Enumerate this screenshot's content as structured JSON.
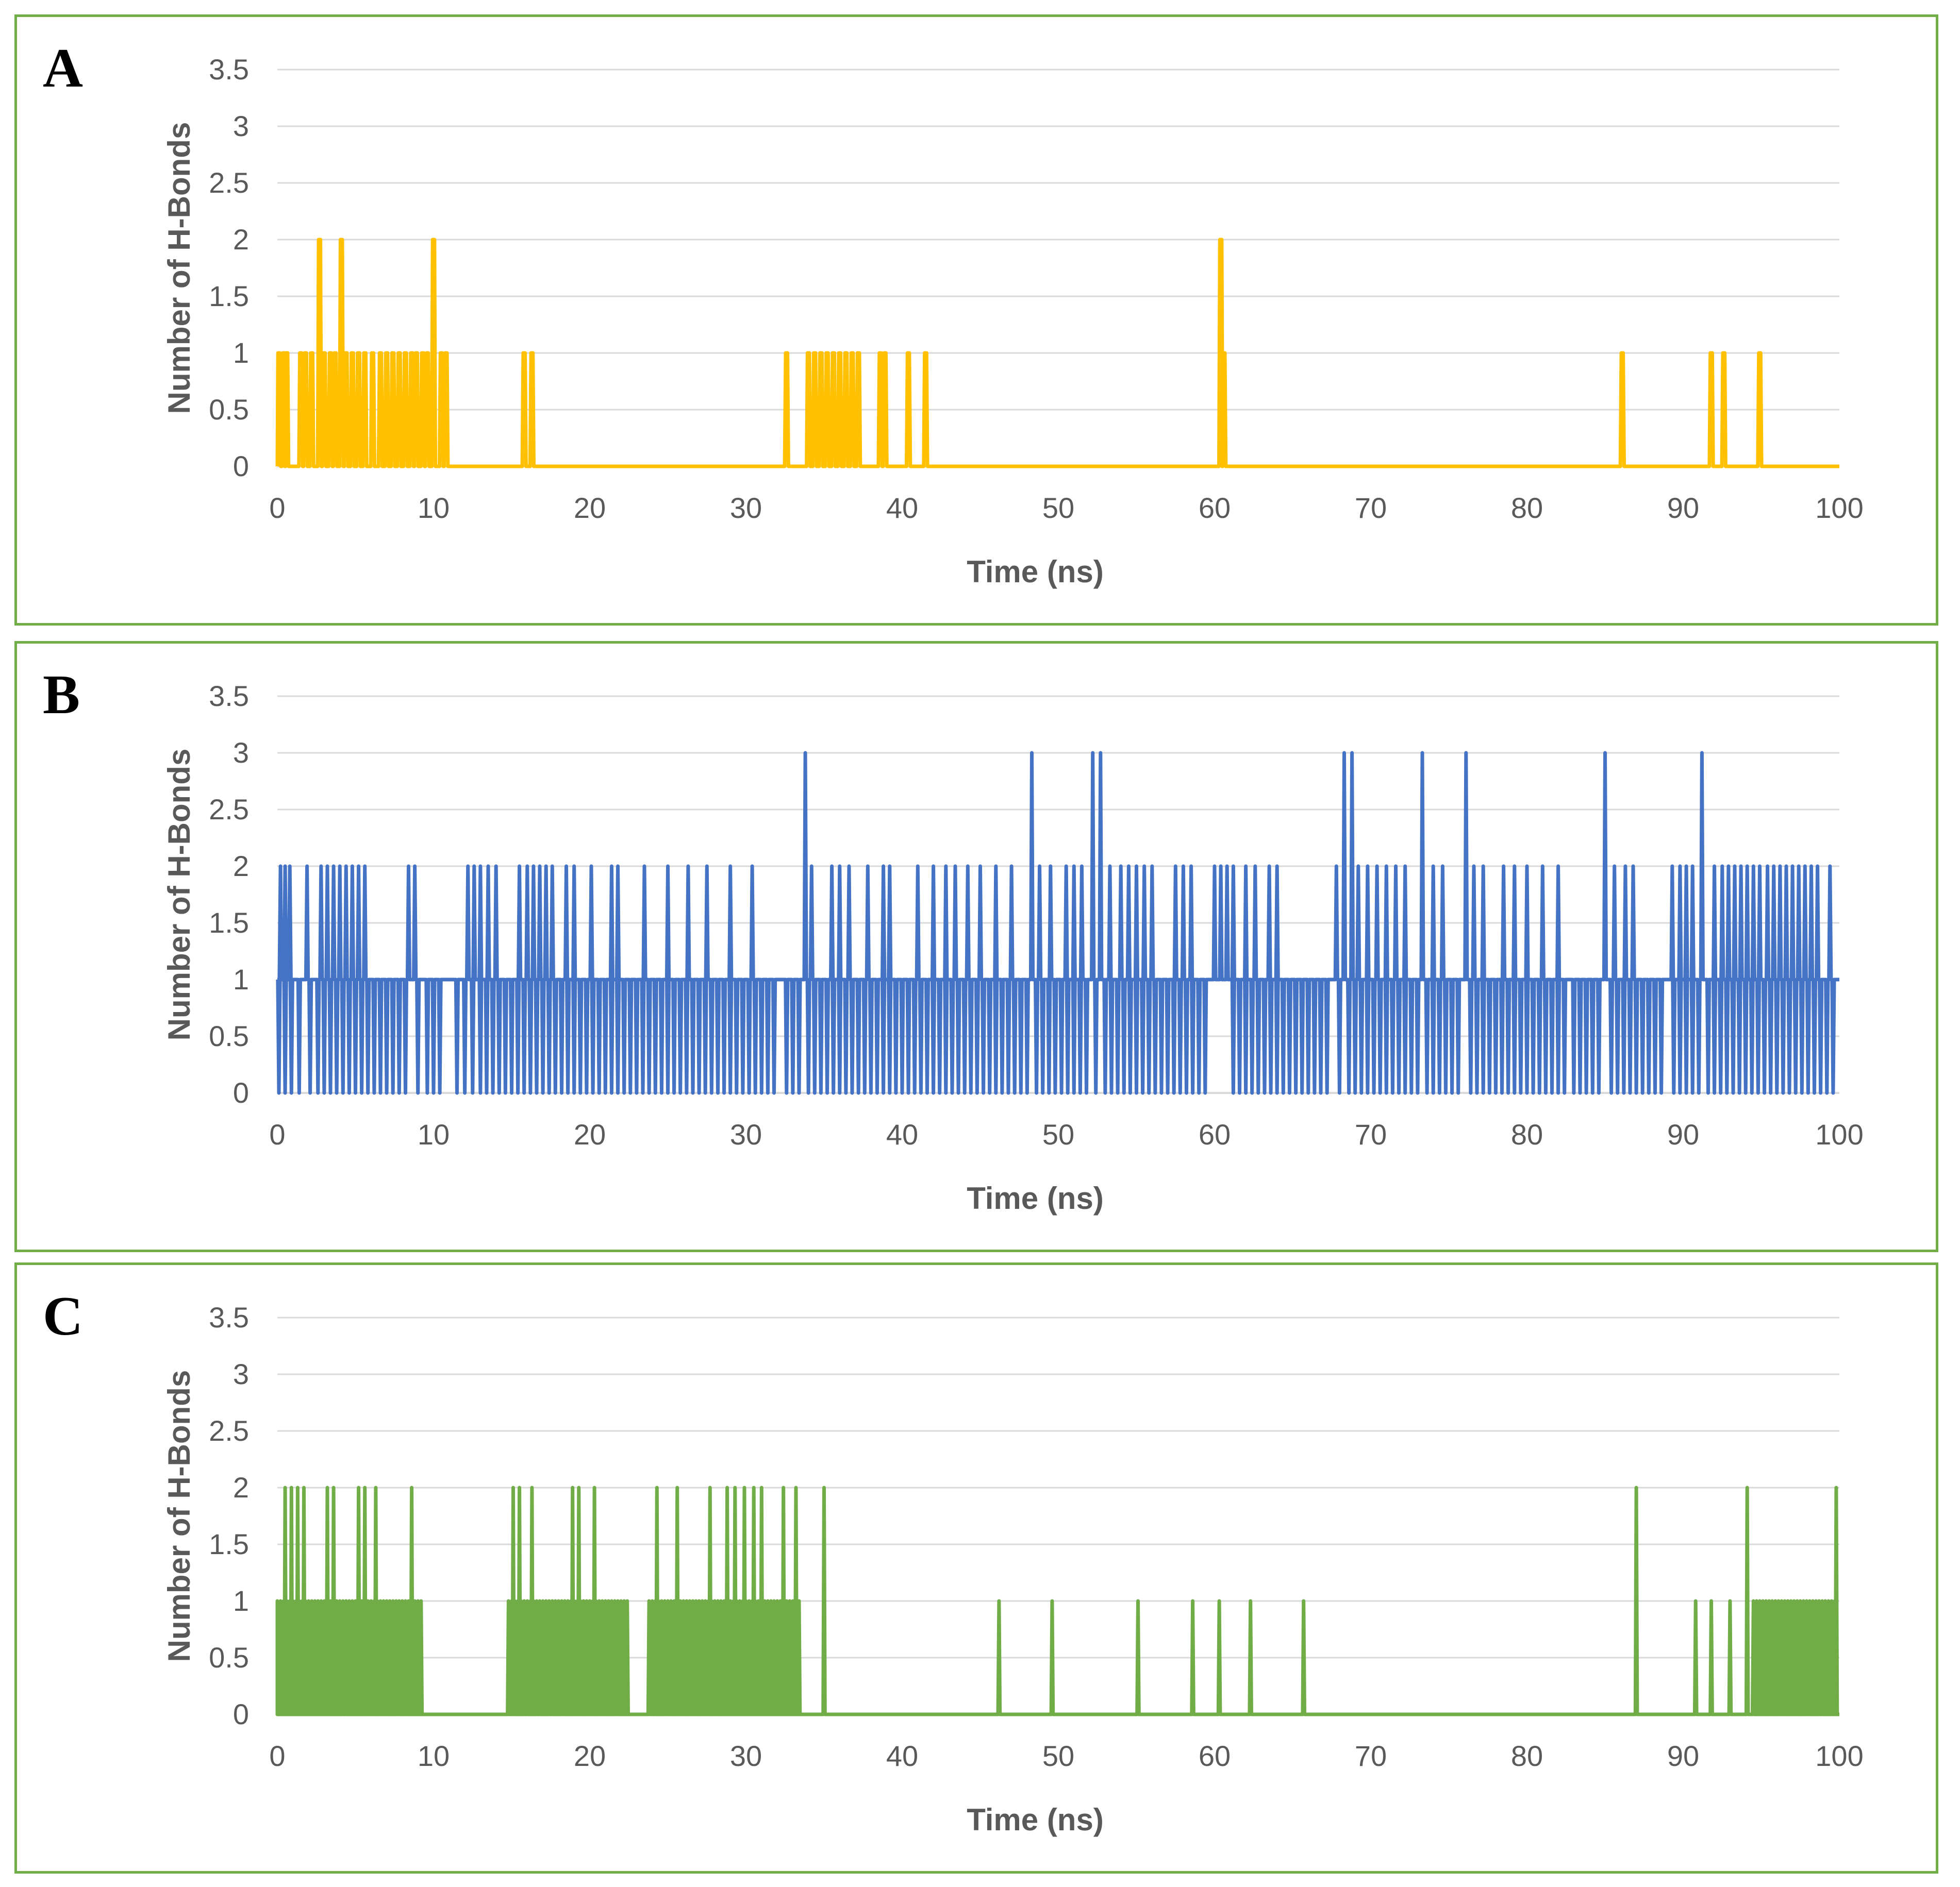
{
  "chart_data": [
    {
      "type": "line",
      "panel_label": "A",
      "series": [
        {
          "name": "H-Bonds",
          "color": "#ffc000",
          "values": "A"
        }
      ],
      "xlabel": "Time (ns)",
      "ylabel": "Number of H-Bonds",
      "xlim": [
        0,
        100
      ],
      "ylim": [
        0,
        3.5
      ],
      "xticks": [
        "0",
        "10",
        "20",
        "30",
        "40",
        "50",
        "60",
        "70",
        "80",
        "90",
        "100"
      ],
      "yticks": [
        "0",
        "0.5",
        "1",
        "1.5",
        "2",
        "2.5",
        "3",
        "3.5"
      ],
      "grid": true,
      "events": [
        [
          0.1,
          1
        ],
        [
          0.4,
          1
        ],
        [
          0.6,
          1
        ],
        [
          1.5,
          1
        ],
        [
          1.8,
          1
        ],
        [
          2.2,
          1
        ],
        [
          2.7,
          2
        ],
        [
          3.0,
          1
        ],
        [
          3.4,
          1
        ],
        [
          3.7,
          1
        ],
        [
          4.1,
          2
        ],
        [
          4.4,
          1
        ],
        [
          4.8,
          1
        ],
        [
          5.2,
          1
        ],
        [
          5.6,
          1
        ],
        [
          6.1,
          1
        ],
        [
          6.6,
          1
        ],
        [
          7.0,
          1
        ],
        [
          7.4,
          1
        ],
        [
          7.8,
          1
        ],
        [
          8.2,
          1
        ],
        [
          8.6,
          1
        ],
        [
          8.9,
          1
        ],
        [
          9.3,
          1
        ],
        [
          9.6,
          1
        ],
        [
          10.0,
          2
        ],
        [
          10.5,
          1
        ],
        [
          10.8,
          1
        ],
        [
          15.8,
          1
        ],
        [
          16.3,
          1
        ],
        [
          32.6,
          1
        ],
        [
          34.0,
          1
        ],
        [
          34.4,
          1
        ],
        [
          34.8,
          1
        ],
        [
          35.2,
          1
        ],
        [
          35.6,
          1
        ],
        [
          36.0,
          1
        ],
        [
          36.4,
          1
        ],
        [
          36.8,
          1
        ],
        [
          37.2,
          1
        ],
        [
          38.6,
          1
        ],
        [
          38.9,
          1
        ],
        [
          40.4,
          1
        ],
        [
          41.5,
          1
        ],
        [
          60.4,
          2
        ],
        [
          60.6,
          1
        ],
        [
          86.1,
          1
        ],
        [
          91.8,
          1
        ],
        [
          92.6,
          1
        ],
        [
          94.9,
          1
        ]
      ]
    },
    {
      "type": "line",
      "panel_label": "B",
      "series": [
        {
          "name": "H-Bonds",
          "color": "#4472c4"
        }
      ],
      "xlabel": "Time (ns)",
      "ylabel": "Number of H-Bonds",
      "xlim": [
        0,
        100
      ],
      "ylim": [
        0,
        3.5
      ],
      "xticks": [
        "0",
        "10",
        "20",
        "30",
        "40",
        "50",
        "60",
        "70",
        "80",
        "90",
        "100"
      ],
      "yticks": [
        "0",
        "0.5",
        "1",
        "1.5",
        "2",
        "2.5",
        "3",
        "3.5"
      ],
      "grid": true,
      "baseline": 1,
      "peaks3": [
        33.8,
        48.3,
        52.2,
        52.7,
        68.3,
        68.8,
        73.3,
        76.1,
        85.0,
        91.2
      ],
      "peaks2": [
        0.2,
        0.5,
        0.8,
        1.9,
        2.8,
        3.2,
        3.6,
        4.0,
        4.4,
        4.8,
        5.2,
        5.6,
        8.4,
        8.8,
        12.2,
        12.6,
        13.0,
        13.5,
        14.0,
        15.5,
        16.0,
        16.4,
        16.8,
        17.2,
        17.6,
        18.5,
        19.0,
        20.1,
        21.4,
        21.8,
        23.5,
        25.0,
        26.3,
        27.5,
        29.0,
        30.4,
        34.2,
        35.5,
        36.0,
        36.6,
        37.8,
        38.8,
        39.2,
        41.0,
        42.0,
        42.8,
        43.4,
        44.2,
        45.0,
        46.0,
        47.0,
        48.8,
        49.5,
        50.5,
        51.0,
        51.5,
        53.3,
        54.0,
        54.5,
        55.0,
        55.5,
        56.0,
        57.5,
        58.0,
        58.5,
        60.0,
        60.4,
        60.8,
        61.2,
        62.0,
        62.6,
        63.5,
        64.0,
        67.8,
        69.2,
        69.8,
        70.4,
        71.0,
        71.6,
        72.2,
        74.0,
        74.6,
        76.6,
        77.2,
        78.5,
        79.2,
        80.0,
        81.0,
        82.0,
        85.6,
        86.3,
        86.8,
        89.3,
        89.8,
        90.2,
        90.6,
        92.0,
        92.5,
        92.9,
        93.3,
        93.7,
        94.1,
        94.5,
        94.9,
        95.4,
        95.8,
        96.2,
        96.6,
        97.0,
        97.4,
        97.8,
        98.2,
        98.6,
        99.4
      ],
      "dips0": [
        0.1,
        0.5,
        0.9,
        1.4,
        2.1,
        2.6,
        3.0,
        3.4,
        3.8,
        4.2,
        4.6,
        5.0,
        5.4,
        5.8,
        6.2,
        6.6,
        7.0,
        7.4,
        7.8,
        8.2,
        9.0,
        9.6,
        10.0,
        10.4,
        11.5,
        12.0,
        12.5,
        13.0,
        13.4,
        13.8,
        14.2,
        14.6,
        15.0,
        15.4,
        15.8,
        16.2,
        16.6,
        17.0,
        17.4,
        17.8,
        18.2,
        18.6,
        19.0,
        19.4,
        19.8,
        20.2,
        20.6,
        21.0,
        21.4,
        21.8,
        22.2,
        22.6,
        23.0,
        23.4,
        23.8,
        24.2,
        24.6,
        25.0,
        25.4,
        25.8,
        26.2,
        26.6,
        27.0,
        27.4,
        27.8,
        28.2,
        28.6,
        29.0,
        29.4,
        29.8,
        30.2,
        30.6,
        31.0,
        31.4,
        31.8,
        32.6,
        33.0,
        33.4,
        34.0,
        34.4,
        34.8,
        35.2,
        35.6,
        36.0,
        36.4,
        36.8,
        37.2,
        37.6,
        38.0,
        38.4,
        38.8,
        39.2,
        39.6,
        40.0,
        40.4,
        40.8,
        41.2,
        41.6,
        42.0,
        42.4,
        42.8,
        43.2,
        43.6,
        44.0,
        44.4,
        44.8,
        45.2,
        45.6,
        46.0,
        46.4,
        46.8,
        47.2,
        47.6,
        48.0,
        48.6,
        49.0,
        49.4,
        49.8,
        50.2,
        50.6,
        51.0,
        51.4,
        51.8,
        52.4,
        53.0,
        53.4,
        53.8,
        54.2,
        54.6,
        55.0,
        55.4,
        55.8,
        56.2,
        56.6,
        57.0,
        57.4,
        57.8,
        58.2,
        58.6,
        59.0,
        59.4,
        61.2,
        61.6,
        62.0,
        62.4,
        62.8,
        63.2,
        63.6,
        64.0,
        64.4,
        64.8,
        65.2,
        65.6,
        66.0,
        66.4,
        66.8,
        67.2,
        68.0,
        68.6,
        69.0,
        69.4,
        69.8,
        70.2,
        70.6,
        71.0,
        71.4,
        71.8,
        72.2,
        72.6,
        73.0,
        73.6,
        74.0,
        74.4,
        74.8,
        75.2,
        75.6,
        76.4,
        76.8,
        77.2,
        77.6,
        78.0,
        78.4,
        78.8,
        79.2,
        79.6,
        80.0,
        80.4,
        80.8,
        81.2,
        81.6,
        82.0,
        82.4,
        83.0,
        83.4,
        83.8,
        84.2,
        84.6,
        85.4,
        85.8,
        86.2,
        86.6,
        87.0,
        87.4,
        87.8,
        88.2,
        88.6,
        89.4,
        89.8,
        90.2,
        90.6,
        91.0,
        91.6,
        92.0,
        92.4,
        92.8,
        93.2,
        93.6,
        94.0,
        94.4,
        94.8,
        95.2,
        95.6,
        96.0,
        96.4,
        96.8,
        97.2,
        97.6,
        98.0,
        98.4,
        98.8,
        99.2,
        99.6
      ]
    },
    {
      "type": "line",
      "panel_label": "C",
      "series": [
        {
          "name": "H-Bonds",
          "color": "#70ad47"
        }
      ],
      "xlabel": "Time (ns)",
      "ylabel": "Number of H-Bonds",
      "xlim": [
        0,
        100
      ],
      "ylim": [
        0,
        3.5
      ],
      "xticks": [
        "0",
        "10",
        "20",
        "30",
        "40",
        "50",
        "60",
        "70",
        "80",
        "90",
        "100"
      ],
      "yticks": [
        "0",
        "0.5",
        "1",
        "1.5",
        "2",
        "2.5",
        "3",
        "3.5"
      ],
      "grid": true,
      "active_segments": [
        [
          0,
          9.2
        ],
        [
          14.8,
          22.5
        ],
        [
          23.8,
          33.5
        ],
        [
          94.5,
          99.8
        ]
      ],
      "peaks2": [
        0.5,
        0.9,
        1.3,
        1.7,
        3.2,
        3.6,
        5.2,
        5.6,
        6.3,
        8.6,
        15.1,
        15.5,
        16.3,
        18.9,
        19.3,
        20.3,
        24.3,
        25.6,
        27.7,
        28.8,
        29.3,
        29.9,
        30.5,
        31.0,
        32.4,
        33.2,
        35.0,
        87.0,
        94.1,
        99.8
      ],
      "isolated1": [
        46.2,
        49.6,
        55.1,
        58.6,
        60.3,
        62.3,
        65.7,
        90.8,
        91.8,
        93.0
      ]
    }
  ]
}
